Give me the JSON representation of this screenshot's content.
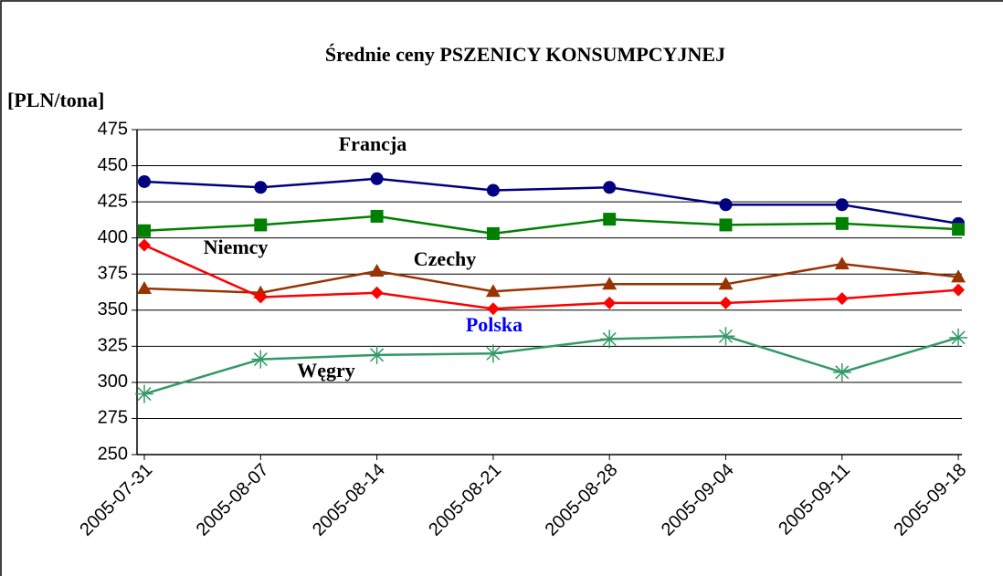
{
  "chart_data": {
    "type": "line",
    "title": "Średnie ceny PSZENICY KONSUMPCYJNEJ",
    "y_axis_label": "[PLN/tona]",
    "categories": [
      "2005-07-31",
      "2005-08-07",
      "2005-08-14",
      "2005-08-21",
      "2005-08-28",
      "2005-09-04",
      "2005-09-11",
      "2005-09-18"
    ],
    "series": [
      {
        "name": "Francja",
        "color": "#000080",
        "marker": "circle",
        "values": [
          439,
          435,
          441,
          433,
          435,
          423,
          423,
          410
        ]
      },
      {
        "name": "Niemcy",
        "color": "#008000",
        "marker": "square",
        "values": [
          405,
          409,
          415,
          403,
          413,
          409,
          410,
          406
        ]
      },
      {
        "name": "Czechy",
        "color": "#993300",
        "marker": "triangle",
        "values": [
          365,
          362,
          377,
          363,
          368,
          368,
          382,
          373
        ]
      },
      {
        "name": "Polska",
        "color": "#ff0000",
        "marker": "diamond",
        "values": [
          395,
          359,
          362,
          351,
          355,
          355,
          358,
          364
        ]
      },
      {
        "name": "Węgry",
        "color": "#339966",
        "marker": "star",
        "values": [
          292,
          316,
          319,
          320,
          330,
          332,
          307,
          331
        ]
      }
    ],
    "ylim": [
      250,
      475
    ],
    "yticks": [
      250,
      275,
      300,
      325,
      350,
      375,
      400,
      425,
      450,
      475
    ],
    "grid": true
  }
}
